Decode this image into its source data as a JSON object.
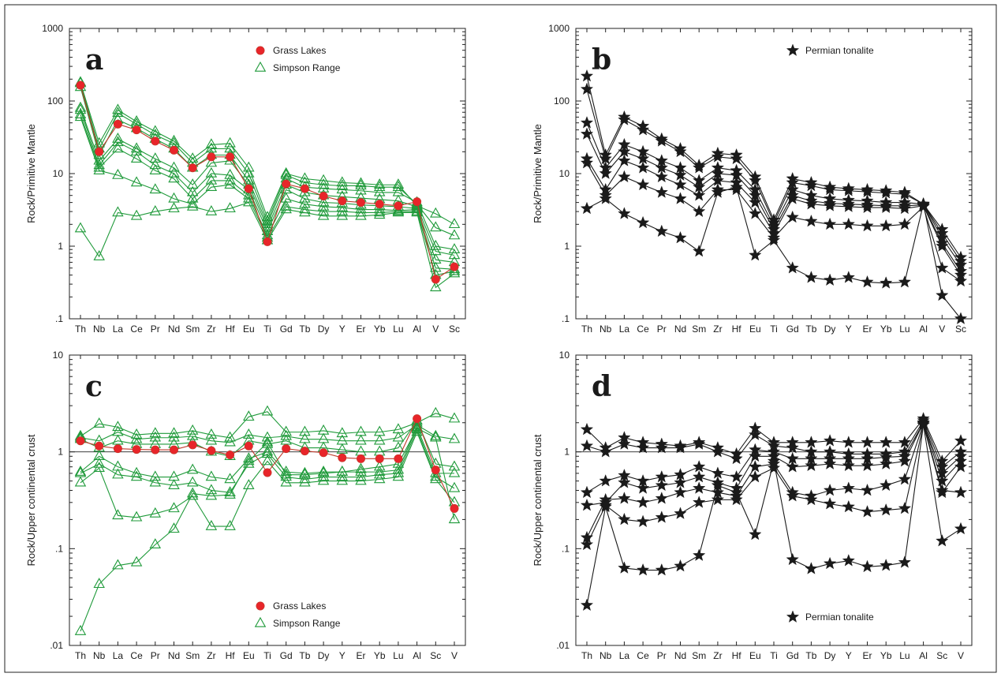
{
  "colors": {
    "red": "#e8252a",
    "redLine": "#c0392b",
    "green": "#1f9a3a",
    "black": "#1a1a1a"
  },
  "chart_data": [
    {
      "type": "line",
      "panel": "a",
      "ylabel": "Rock/Primitive Mantle",
      "yscale": "log",
      "ylim": [
        0.1,
        1000
      ],
      "yticks": [
        {
          "v": 0.1,
          "label": ".1"
        },
        {
          "v": 1,
          "label": "1"
        },
        {
          "v": 10,
          "label": "10"
        },
        {
          "v": 100,
          "label": "100"
        },
        {
          "v": 1000,
          "label": "1000"
        }
      ],
      "categories": [
        "Th",
        "Nb",
        "La",
        "Ce",
        "Pr",
        "Nd",
        "Sm",
        "Zr",
        "Hf",
        "Eu",
        "Ti",
        "Gd",
        "Tb",
        "Dy",
        "Y",
        "Er",
        "Yb",
        "Lu",
        "Al",
        "V",
        "Sc"
      ],
      "legend": {
        "position": "top-center",
        "entries": [
          {
            "label": "Grass Lakes",
            "marker": "circle"
          },
          {
            "label": "Simpson Range",
            "marker": "triangle"
          }
        ]
      },
      "series": [
        {
          "name": "Grass Lakes",
          "marker": "circle",
          "values": [
            165,
            20,
            48,
            40,
            28,
            21,
            12,
            17,
            17,
            6.2,
            1.15,
            7.2,
            6.2,
            4.9,
            4.2,
            4.0,
            3.8,
            3.6,
            4.1,
            0.35,
            0.52
          ]
        },
        {
          "name": "Simpson Range",
          "marker": "triangle",
          "values": [
            180,
            26,
            75,
            52,
            38,
            28,
            16,
            25,
            26,
            12,
            2.5,
            10,
            8.5,
            8.0,
            7.5,
            7.3,
            7.0,
            7.0,
            3.6,
            2.8,
            2.0
          ]
        },
        {
          "name": "Simpson Range",
          "marker": "triangle",
          "values": [
            175,
            22,
            68,
            48,
            34,
            26,
            14,
            22,
            22,
            10,
            2.2,
            9.5,
            7.5,
            7.0,
            6.8,
            6.8,
            6.5,
            6.5,
            3.8,
            1.8,
            1.4
          ]
        },
        {
          "name": "Simpson Range",
          "marker": "triangle",
          "values": [
            155,
            18,
            55,
            42,
            30,
            22,
            12,
            18,
            18,
            8.0,
            2.0,
            8.5,
            6.5,
            6.2,
            6.0,
            5.8,
            5.5,
            5.5,
            4.0,
            1.0,
            0.9
          ]
        },
        {
          "name": "Simpson Range",
          "marker": "triangle",
          "values": [
            80,
            15,
            30,
            22,
            16,
            12,
            7.0,
            14,
            15,
            7.0,
            1.8,
            7.0,
            5.5,
            5.0,
            4.8,
            4.6,
            4.4,
            4.2,
            3.5,
            0.85,
            0.75
          ]
        },
        {
          "name": "Simpson Range",
          "marker": "triangle",
          "values": [
            75,
            13,
            27,
            20,
            13,
            10,
            5.5,
            10,
            9.5,
            6.0,
            1.6,
            6.0,
            4.5,
            4.0,
            3.9,
            3.7,
            3.6,
            3.5,
            3.3,
            0.65,
            0.6
          ]
        },
        {
          "name": "Simpson Range",
          "marker": "triangle",
          "values": [
            65,
            12,
            22,
            16,
            11,
            8.5,
            4.5,
            8.0,
            8.0,
            5.0,
            1.4,
            4.5,
            3.8,
            3.5,
            3.4,
            3.2,
            3.2,
            3.1,
            3.2,
            0.5,
            0.48
          ]
        },
        {
          "name": "Simpson Range",
          "marker": "triangle",
          "values": [
            60,
            11,
            9.5,
            7.5,
            6.0,
            4.5,
            3.8,
            6.5,
            7.0,
            4.5,
            1.3,
            3.5,
            3.2,
            3.0,
            3.0,
            2.9,
            2.9,
            3.0,
            3.0,
            0.4,
            0.45
          ]
        },
        {
          "name": "Simpson Range",
          "marker": "triangle",
          "values": [
            1.75,
            0.72,
            2.9,
            2.6,
            3.0,
            3.3,
            3.5,
            3.0,
            3.3,
            4.0,
            1.2,
            3.2,
            2.9,
            2.6,
            2.6,
            2.6,
            2.7,
            2.9,
            2.9,
            0.27,
            0.42
          ]
        }
      ]
    },
    {
      "type": "line",
      "panel": "b",
      "ylabel": "Rock/Primitive Mantle",
      "yscale": "log",
      "ylim": [
        0.1,
        1000
      ],
      "yticks": [
        {
          "v": 0.1,
          "label": ".1"
        },
        {
          "v": 1,
          "label": "1"
        },
        {
          "v": 10,
          "label": "10"
        },
        {
          "v": 100,
          "label": "100"
        },
        {
          "v": 1000,
          "label": "1000"
        }
      ],
      "categories": [
        "Th",
        "Nb",
        "La",
        "Ce",
        "Pr",
        "Nd",
        "Sm",
        "Zr",
        "Hf",
        "Eu",
        "Ti",
        "Gd",
        "Tb",
        "Dy",
        "Y",
        "Er",
        "Yb",
        "Lu",
        "Al",
        "V",
        "Sc"
      ],
      "legend": {
        "position": "top-center",
        "entries": [
          {
            "label": "Permian tonalite",
            "marker": "star"
          }
        ]
      },
      "series": [
        {
          "name": "Permian tonalite",
          "marker": "star",
          "values": [
            220,
            18,
            60,
            45,
            30,
            22,
            13,
            19,
            18,
            9.0,
            2.3,
            8.5,
            7.5,
            6.5,
            6.2,
            6.0,
            5.8,
            5.5,
            3.8,
            1.7,
            0.7
          ]
        },
        {
          "name": "Permian tonalite",
          "marker": "star",
          "values": [
            145,
            16,
            55,
            40,
            28,
            20,
            12,
            17,
            16,
            8.0,
            2.1,
            7.5,
            6.8,
            6.0,
            5.8,
            5.6,
            5.4,
            5.2,
            3.8,
            1.5,
            0.62
          ]
        },
        {
          "name": "Permian tonalite",
          "marker": "star",
          "values": [
            50,
            12,
            25,
            20,
            15,
            12,
            8.0,
            12,
            11,
            6.0,
            1.9,
            6.0,
            5.0,
            4.5,
            4.3,
            4.2,
            4.0,
            4.0,
            3.8,
            1.3,
            0.55
          ]
        },
        {
          "name": "Permian tonalite",
          "marker": "star",
          "values": [
            35,
            10,
            20,
            16,
            12,
            9.5,
            6.5,
            10,
            9.5,
            5.0,
            1.7,
            5.0,
            4.2,
            3.9,
            3.8,
            3.7,
            3.6,
            3.6,
            3.7,
            1.1,
            0.45
          ]
        },
        {
          "name": "Permian tonalite",
          "marker": "star",
          "values": [
            16,
            6.0,
            15,
            12,
            9.0,
            7.0,
            5.0,
            8.0,
            7.5,
            4.0,
            1.5,
            4.5,
            3.8,
            3.6,
            3.5,
            3.4,
            3.4,
            3.3,
            3.6,
            1.0,
            0.4
          ]
        },
        {
          "name": "Permian tonalite",
          "marker": "star",
          "values": [
            14,
            5.0,
            9.0,
            7.0,
            5.5,
            4.5,
            3.0,
            6.0,
            6.0,
            2.8,
            1.3,
            2.5,
            2.2,
            2.0,
            2.0,
            1.9,
            1.9,
            2.0,
            3.5,
            0.5,
            0.33
          ]
        },
        {
          "name": "Permian tonalite",
          "marker": "star",
          "values": [
            3.3,
            4.5,
            2.8,
            2.1,
            1.6,
            1.3,
            0.85,
            5.5,
            6.5,
            0.75,
            1.2,
            0.5,
            0.37,
            0.34,
            0.37,
            0.32,
            0.31,
            0.32,
            3.8,
            0.21,
            0.1
          ]
        }
      ]
    },
    {
      "type": "line",
      "panel": "c",
      "ylabel": "Rock/Upper continental crust",
      "yscale": "log",
      "ylim": [
        0.01,
        10
      ],
      "yticks": [
        {
          "v": 0.01,
          "label": ".01"
        },
        {
          "v": 0.1,
          "label": ".1"
        },
        {
          "v": 1,
          "label": "1"
        },
        {
          "v": 10,
          "label": "10"
        }
      ],
      "categories": [
        "Th",
        "Nb",
        "La",
        "Ce",
        "Pr",
        "Nd",
        "Sm",
        "Zr",
        "Hf",
        "Eu",
        "Ti",
        "Gd",
        "Tb",
        "Dy",
        "Y",
        "Er",
        "Yb",
        "Lu",
        "Al",
        "Sc",
        "V"
      ],
      "legend": {
        "position": "bottom-center",
        "entries": [
          {
            "label": "Grass Lakes",
            "marker": "circle"
          },
          {
            "label": "Simpson Range",
            "marker": "triangle"
          }
        ]
      },
      "series": [
        {
          "name": "Grass Lakes",
          "marker": "circle",
          "values": [
            1.3,
            1.15,
            1.08,
            1.06,
            1.05,
            1.05,
            1.18,
            1.03,
            0.93,
            1.15,
            0.61,
            1.08,
            1.02,
            0.98,
            0.87,
            0.85,
            0.85,
            0.85,
            2.2,
            0.65,
            0.26
          ]
        },
        {
          "name": "Simpson Range",
          "marker": "triangle",
          "values": [
            1.45,
            1.95,
            1.8,
            1.5,
            1.55,
            1.55,
            1.65,
            1.5,
            1.4,
            2.3,
            2.6,
            1.6,
            1.6,
            1.65,
            1.55,
            1.6,
            1.6,
            1.7,
            2.0,
            2.5,
            2.2
          ]
        },
        {
          "name": "Simpson Range",
          "marker": "triangle",
          "values": [
            1.4,
            1.3,
            1.6,
            1.35,
            1.4,
            1.4,
            1.45,
            1.3,
            1.25,
            1.5,
            1.4,
            1.45,
            1.35,
            1.35,
            1.3,
            1.3,
            1.3,
            1.4,
            1.9,
            1.45,
            1.35
          ]
        },
        {
          "name": "Simpson Range",
          "marker": "triangle",
          "values": [
            1.35,
            1.1,
            1.3,
            1.2,
            1.2,
            1.2,
            1.25,
            1.0,
            0.9,
            1.3,
            1.2,
            1.3,
            1.1,
            1.1,
            1.05,
            1.0,
            1.0,
            1.1,
            2.1,
            0.75,
            0.7
          ]
        },
        {
          "name": "Simpson Range",
          "marker": "triangle",
          "values": [
            0.62,
            0.9,
            0.7,
            0.6,
            0.55,
            0.55,
            0.65,
            0.55,
            0.52,
            0.85,
            1.0,
            0.62,
            0.6,
            0.62,
            0.62,
            0.62,
            0.62,
            0.65,
            1.8,
            0.6,
            0.6
          ]
        },
        {
          "name": "Simpson Range",
          "marker": "triangle",
          "values": [
            0.6,
            0.75,
            0.58,
            0.55,
            0.48,
            0.45,
            0.48,
            0.4,
            0.38,
            0.75,
            0.95,
            0.55,
            0.52,
            0.55,
            0.55,
            0.55,
            0.58,
            0.6,
            1.7,
            0.55,
            0.42
          ]
        },
        {
          "name": "Simpson Range",
          "marker": "triangle",
          "values": [
            0.48,
            0.68,
            0.22,
            0.21,
            0.23,
            0.26,
            0.35,
            0.17,
            0.17,
            0.45,
            0.8,
            0.48,
            0.48,
            0.5,
            0.5,
            0.5,
            0.52,
            0.55,
            1.6,
            0.52,
            0.3
          ]
        },
        {
          "name": "Simpson Range",
          "marker": "triangle",
          "values": [
            0.014,
            0.043,
            0.067,
            0.072,
            0.11,
            0.16,
            0.37,
            0.35,
            0.36,
            0.8,
            1.25,
            0.58,
            0.58,
            0.6,
            0.62,
            0.66,
            0.7,
            0.75,
            1.75,
            1.4,
            0.2
          ]
        }
      ]
    },
    {
      "type": "line",
      "panel": "d",
      "ylabel": "Rock/Upper continental crust",
      "yscale": "log",
      "ylim": [
        0.01,
        10
      ],
      "yticks": [
        {
          "v": 0.01,
          "label": ".01"
        },
        {
          "v": 0.1,
          "label": ".1"
        },
        {
          "v": 1,
          "label": "1"
        },
        {
          "v": 10,
          "label": "10"
        }
      ],
      "categories": [
        "Th",
        "Nb",
        "La",
        "Ce",
        "Pr",
        "Nd",
        "Sm",
        "Zr",
        "Hf",
        "Eu",
        "Ti",
        "Gd",
        "Tb",
        "Dy",
        "Y",
        "Er",
        "Yb",
        "Lu",
        "Al",
        "Sc",
        "V"
      ],
      "legend": {
        "position": "bottom-center",
        "entries": [
          {
            "label": "Permian tonalite",
            "marker": "star"
          }
        ]
      },
      "series": [
        {
          "name": "Permian tonalite",
          "marker": "star",
          "values": [
            1.7,
            1.1,
            1.4,
            1.25,
            1.2,
            1.15,
            1.25,
            1.1,
            0.95,
            1.75,
            1.25,
            1.25,
            1.25,
            1.3,
            1.25,
            1.25,
            1.25,
            1.25,
            2.2,
            0.8,
            1.3
          ]
        },
        {
          "name": "Permian tonalite",
          "marker": "star",
          "values": [
            1.15,
            1.0,
            1.2,
            1.1,
            1.1,
            1.1,
            1.2,
            1.0,
            0.85,
            1.5,
            1.15,
            1.1,
            1.0,
            1.0,
            0.95,
            0.95,
            0.95,
            1.0,
            2.1,
            0.7,
            1.0
          ]
        },
        {
          "name": "Permian tonalite",
          "marker": "star",
          "values": [
            0.38,
            0.5,
            0.57,
            0.5,
            0.55,
            0.58,
            0.7,
            0.6,
            0.55,
            1.05,
            1.0,
            0.85,
            0.85,
            0.85,
            0.85,
            0.85,
            0.88,
            0.9,
            2.0,
            0.6,
            0.9
          ]
        },
        {
          "name": "Permian tonalite",
          "marker": "star",
          "values": [
            0.28,
            0.3,
            0.48,
            0.42,
            0.45,
            0.48,
            0.55,
            0.48,
            0.42,
            0.9,
            0.9,
            0.7,
            0.72,
            0.75,
            0.72,
            0.72,
            0.75,
            0.8,
            2.0,
            0.5,
            0.8
          ]
        },
        {
          "name": "Permian tonalite",
          "marker": "star",
          "values": [
            0.13,
            0.32,
            0.33,
            0.3,
            0.33,
            0.38,
            0.42,
            0.38,
            0.35,
            0.7,
            0.75,
            0.38,
            0.35,
            0.4,
            0.42,
            0.4,
            0.45,
            0.52,
            1.95,
            0.4,
            0.38
          ]
        },
        {
          "name": "Permian tonalite",
          "marker": "star",
          "values": [
            0.11,
            0.28,
            0.2,
            0.19,
            0.21,
            0.23,
            0.3,
            0.32,
            0.32,
            0.55,
            0.68,
            0.35,
            0.32,
            0.29,
            0.27,
            0.24,
            0.25,
            0.26,
            1.9,
            0.12,
            0.16
          ]
        },
        {
          "name": "Permian tonalite",
          "marker": "star",
          "values": [
            0.026,
            0.27,
            0.063,
            0.06,
            0.06,
            0.066,
            0.085,
            0.45,
            0.38,
            0.14,
            0.8,
            0.077,
            0.062,
            0.07,
            0.075,
            0.065,
            0.067,
            0.072,
            1.9,
            0.38,
            0.7
          ]
        }
      ]
    }
  ]
}
